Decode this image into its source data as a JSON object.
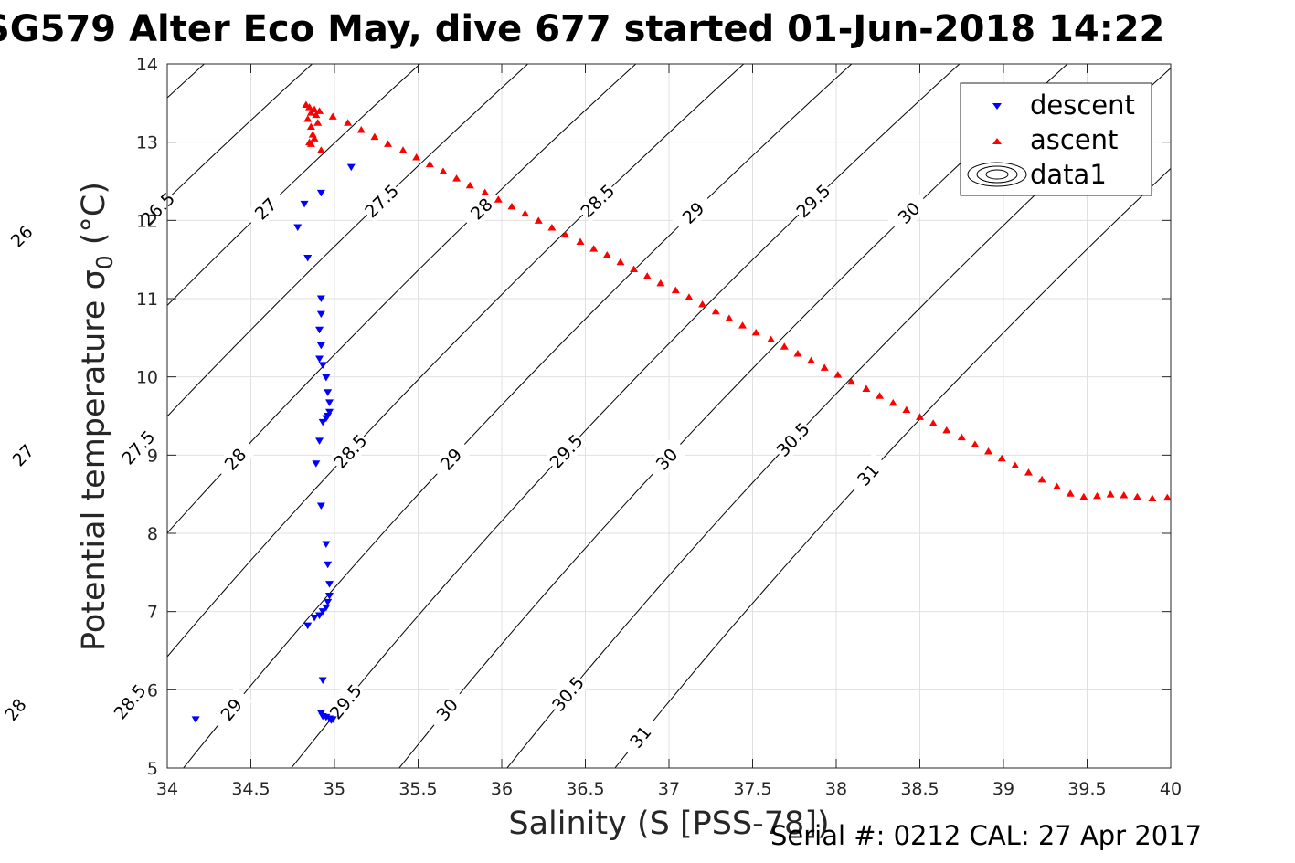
{
  "title": "SG579 Alter Eco May, dive 677 started 01-Jun-2018 14:22",
  "footer": "Serial #: 0212  CAL: 27 Apr 2017",
  "chart_data": {
    "type": "scatter",
    "xlabel": "Salinity (S [PSS-78])",
    "ylabel": "Potential temperature σ",
    "ylabel_subscript": "0",
    "ylabel_unit": " (°C)",
    "xlim": [
      34,
      40
    ],
    "ylim": [
      5,
      14
    ],
    "xticks": [
      34,
      34.5,
      35,
      35.5,
      36,
      36.5,
      37,
      37.5,
      38,
      38.5,
      39,
      39.5,
      40
    ],
    "yticks": [
      5,
      6,
      7,
      8,
      9,
      10,
      11,
      12,
      13,
      14
    ],
    "grid": true,
    "legend_position": "top-right",
    "legend": [
      "descent",
      "ascent",
      "data1"
    ],
    "colors": {
      "descent": "#0000ff",
      "ascent": "#ff0000",
      "contour": "#000000",
      "grid": "#e0e0e0"
    },
    "series": [
      {
        "name": "descent",
        "marker": "triangle-down",
        "x": [
          34.17,
          34.82,
          34.78,
          34.84,
          34.92,
          35.1,
          34.92,
          34.92,
          34.91,
          34.92,
          34.91,
          34.93,
          34.95,
          34.96,
          34.97,
          34.97,
          34.96,
          34.95,
          34.93,
          34.91,
          34.89,
          34.92,
          34.95,
          34.96,
          34.97,
          34.97,
          34.96,
          34.95,
          34.93,
          34.91,
          34.88,
          34.84,
          34.93,
          34.92,
          34.93,
          34.95,
          34.97,
          34.98,
          34.99
        ],
        "y": [
          5.62,
          12.21,
          11.91,
          11.52,
          12.35,
          12.68,
          11.0,
          10.8,
          10.6,
          10.4,
          10.23,
          10.15,
          9.99,
          9.8,
          9.67,
          9.55,
          9.5,
          9.47,
          9.42,
          9.18,
          8.89,
          8.35,
          7.86,
          7.6,
          7.35,
          7.2,
          7.12,
          7.05,
          7.0,
          6.95,
          6.92,
          6.82,
          6.12,
          5.7,
          5.66,
          5.65,
          5.63,
          5.61,
          5.62
        ]
      },
      {
        "name": "ascent",
        "marker": "triangle-up",
        "x": [
          34.83,
          34.85,
          34.84,
          34.86,
          34.88,
          34.86,
          34.87,
          34.89,
          34.9,
          34.91,
          34.88,
          34.86,
          34.85,
          34.92,
          34.99,
          35.08,
          35.16,
          35.24,
          35.32,
          35.41,
          35.49,
          35.57,
          35.65,
          35.73,
          35.81,
          35.9,
          35.98,
          36.06,
          36.14,
          36.22,
          36.3,
          36.38,
          36.47,
          36.55,
          36.63,
          36.71,
          36.79,
          36.87,
          36.95,
          37.04,
          37.12,
          37.2,
          37.28,
          37.36,
          37.44,
          37.52,
          37.61,
          37.69,
          37.77,
          37.85,
          37.93,
          38.01,
          38.09,
          38.18,
          38.26,
          38.34,
          38.42,
          38.5,
          38.58,
          38.66,
          38.75,
          38.83,
          38.91,
          38.99,
          39.07,
          39.15,
          39.23,
          39.32,
          39.4,
          39.48,
          39.56,
          39.64,
          39.72,
          39.8,
          39.89,
          39.98
        ],
        "y": [
          13.48,
          13.45,
          13.3,
          13.38,
          13.42,
          13.2,
          13.1,
          13.35,
          13.25,
          13.4,
          13.05,
          12.98,
          13.0,
          12.9,
          13.33,
          13.25,
          13.16,
          13.07,
          12.98,
          12.9,
          12.81,
          12.72,
          12.63,
          12.54,
          12.45,
          12.36,
          12.27,
          12.18,
          12.09,
          12.0,
          11.91,
          11.82,
          11.73,
          11.64,
          11.56,
          11.47,
          11.38,
          11.29,
          11.2,
          11.11,
          11.02,
          10.93,
          10.84,
          10.75,
          10.66,
          10.57,
          10.48,
          10.39,
          10.3,
          10.21,
          10.12,
          10.03,
          9.94,
          9.85,
          9.76,
          9.67,
          9.58,
          9.49,
          9.41,
          9.32,
          9.23,
          9.14,
          9.05,
          8.96,
          8.87,
          8.78,
          8.69,
          8.6,
          8.51,
          8.47,
          8.48,
          8.5,
          8.49,
          8.47,
          8.45,
          8.46
        ]
      },
      {
        "name": "data1",
        "type": "contour",
        "levels": [
          26,
          26.5,
          27,
          27.5,
          28,
          28.5,
          29,
          29.5,
          30,
          30.5,
          31
        ],
        "label_positions": [
          {
            "level": "26",
            "s": 34.18,
            "t": 11.8
          },
          {
            "level": "26.5",
            "s": 34.83,
            "t": 12.15
          },
          {
            "level": "27",
            "s": 35.55,
            "t": 12.15
          },
          {
            "level": "27.5",
            "s": 36.24,
            "t": 12.25
          },
          {
            "level": "28",
            "s": 36.92,
            "t": 12.15
          },
          {
            "level": "28.5",
            "s": 37.6,
            "t": 12.25
          },
          {
            "level": "29",
            "s": 38.2,
            "t": 12.1
          },
          {
            "level": "29.5",
            "s": 38.83,
            "t": 12.25
          },
          {
            "level": "30",
            "s": 39.4,
            "t": 12.1
          },
          {
            "level": "26.5",
            "s": 34.17,
            "t": 8.8
          },
          {
            "level": "27",
            "s": 34.83,
            "t": 9.0
          },
          {
            "level": "27.5",
            "s": 35.48,
            "t": 9.1
          },
          {
            "level": "28",
            "s": 36.12,
            "t": 8.95
          },
          {
            "level": "28.5",
            "s": 36.8,
            "t": 9.05
          },
          {
            "level": "29",
            "s": 37.4,
            "t": 8.95
          },
          {
            "level": "29.5",
            "s": 38.05,
            "t": 9.05
          },
          {
            "level": "30",
            "s": 38.7,
            "t": 8.95
          },
          {
            "level": "30.5",
            "s": 39.35,
            "t": 9.2
          },
          {
            "level": "31",
            "s": 39.87,
            "t": 8.75
          },
          {
            "level": "27",
            "s": 34.27,
            "t": 5.7
          },
          {
            "level": "27.5",
            "s": 34.9,
            "t": 5.8
          },
          {
            "level": "28",
            "s": 35.53,
            "t": 5.75
          },
          {
            "level": "28.5",
            "s": 36.2,
            "t": 5.85
          },
          {
            "level": "29",
            "s": 36.85,
            "t": 5.75
          },
          {
            "level": "29.5",
            "s": 37.5,
            "t": 5.85
          },
          {
            "level": "30",
            "s": 38.12,
            "t": 5.75
          },
          {
            "level": "30.5",
            "s": 38.78,
            "t": 5.95
          },
          {
            "level": "31",
            "s": 39.4,
            "t": 5.4
          }
        ]
      }
    ]
  }
}
